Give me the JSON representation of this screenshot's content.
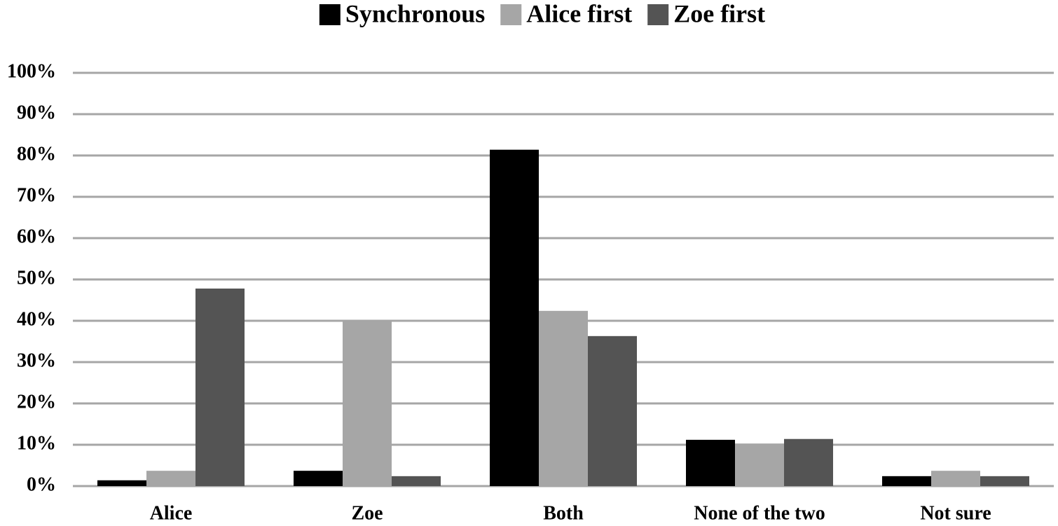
{
  "chart_data": {
    "type": "bar",
    "categories": [
      "Alice",
      "Zoe",
      "Both",
      "None of the two",
      "Not sure"
    ],
    "series": [
      {
        "name": "Synchronous",
        "color": "#000000",
        "values": [
          1.4,
          3.7,
          81.4,
          11.2,
          2.4
        ]
      },
      {
        "name": "Alice first",
        "color": "#a6a6a6",
        "values": [
          3.7,
          40.2,
          42.4,
          10.3,
          3.7
        ]
      },
      {
        "name": "Zoe first",
        "color": "#545454",
        "values": [
          47.8,
          2.4,
          36.3,
          11.4,
          2.4
        ]
      }
    ],
    "ylim": [
      0,
      100
    ],
    "yticks": [
      {
        "value": 0,
        "label": "0%"
      },
      {
        "value": 10,
        "label": "10%"
      },
      {
        "value": 20,
        "label": "20%"
      },
      {
        "value": 30,
        "label": "30%"
      },
      {
        "value": 40,
        "label": "40%"
      },
      {
        "value": 50,
        "label": "50%"
      },
      {
        "value": 60,
        "label": "60%"
      },
      {
        "value": 70,
        "label": "70%"
      },
      {
        "value": 80,
        "label": "80%"
      },
      {
        "value": 90,
        "label": "90%"
      },
      {
        "value": 100,
        "label": "100%"
      }
    ],
    "grid": true,
    "legend": "top"
  }
}
